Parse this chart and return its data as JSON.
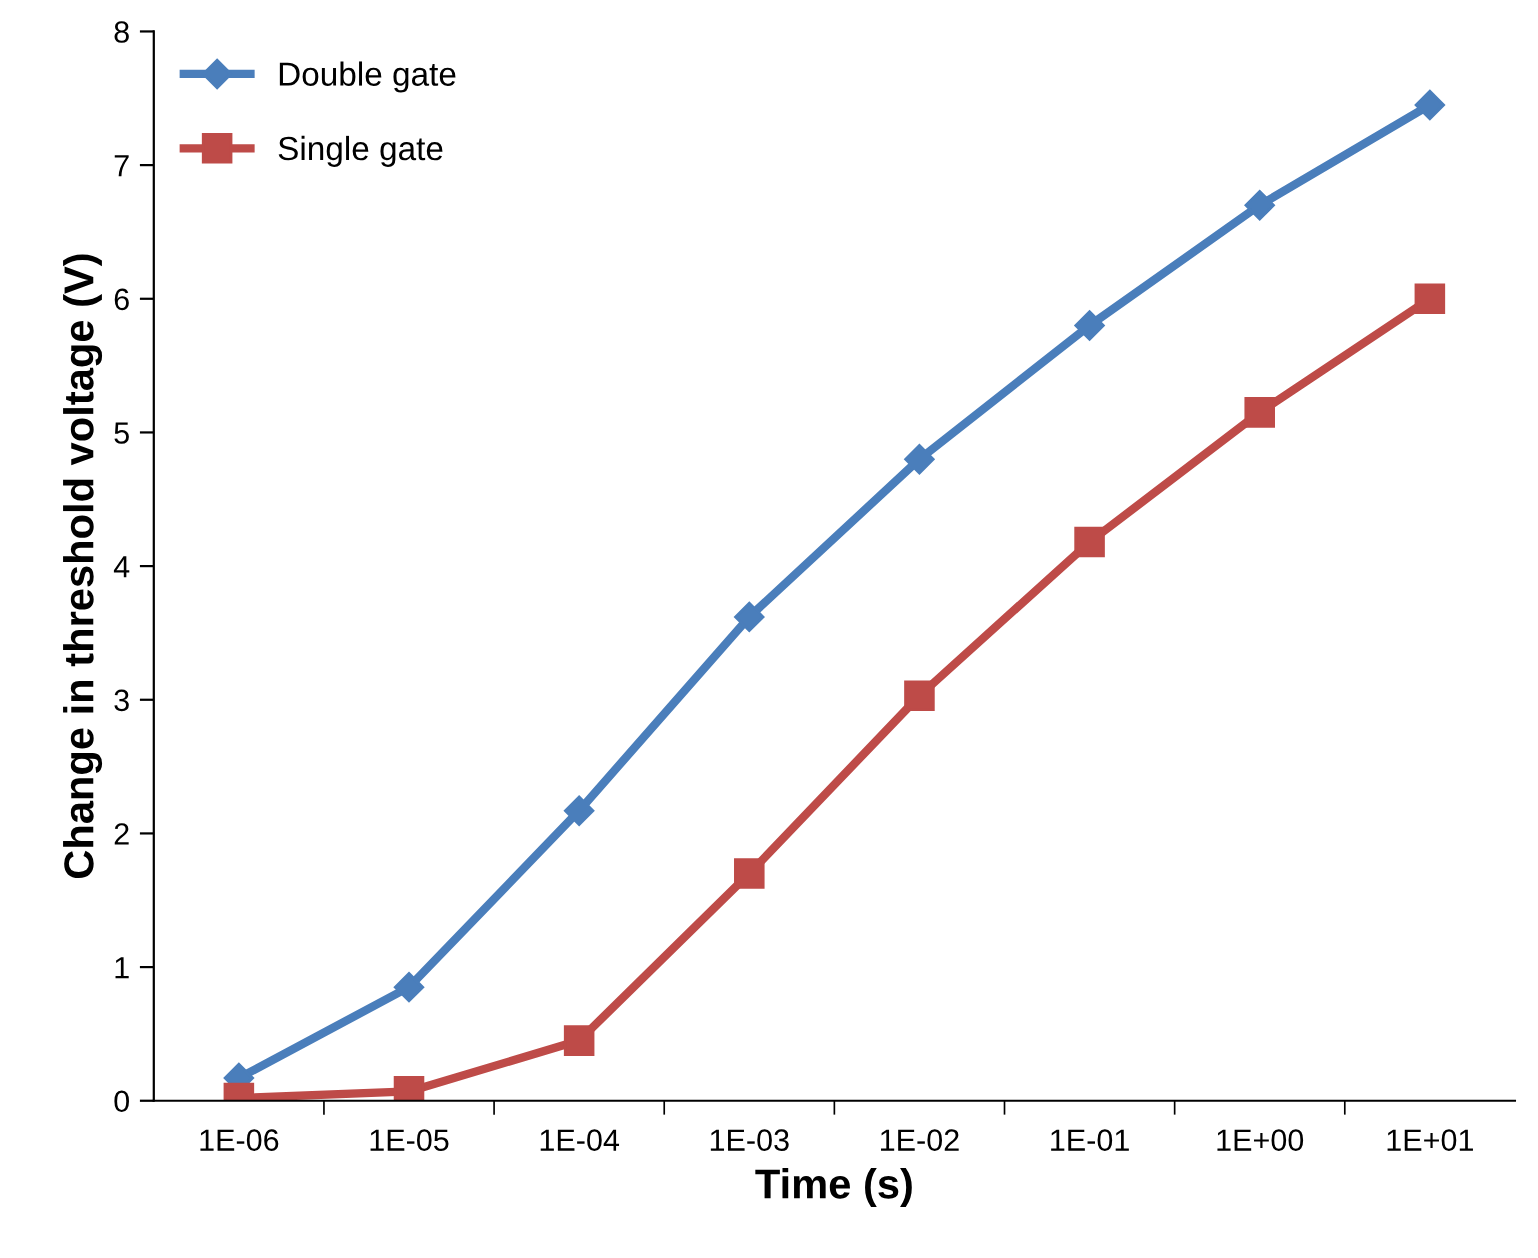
{
  "chart_data": {
    "type": "line",
    "xlabel": "Time (s)",
    "ylabel": "Change in threshold voltage (V)",
    "categories": [
      "1E-06",
      "1E-05",
      "1E-04",
      "1E-03",
      "1E-02",
      "1E-01",
      "1E+00",
      "1E+01"
    ],
    "series": [
      {
        "name": "Double gate",
        "color": "#4a7ebb",
        "marker": "diamond",
        "values": [
          0.17,
          0.85,
          2.17,
          3.62,
          4.8,
          5.8,
          6.7,
          7.45
        ]
      },
      {
        "name": "Single gate",
        "color": "#be4b48",
        "marker": "square",
        "values": [
          0.02,
          0.07,
          0.45,
          1.7,
          3.03,
          4.18,
          5.15,
          6.0
        ]
      }
    ],
    "ylim": [
      0,
      8
    ],
    "yticks": [
      0,
      1,
      2,
      3,
      4,
      5,
      6,
      7,
      8
    ],
    "grid": false,
    "legend": "top left"
  }
}
